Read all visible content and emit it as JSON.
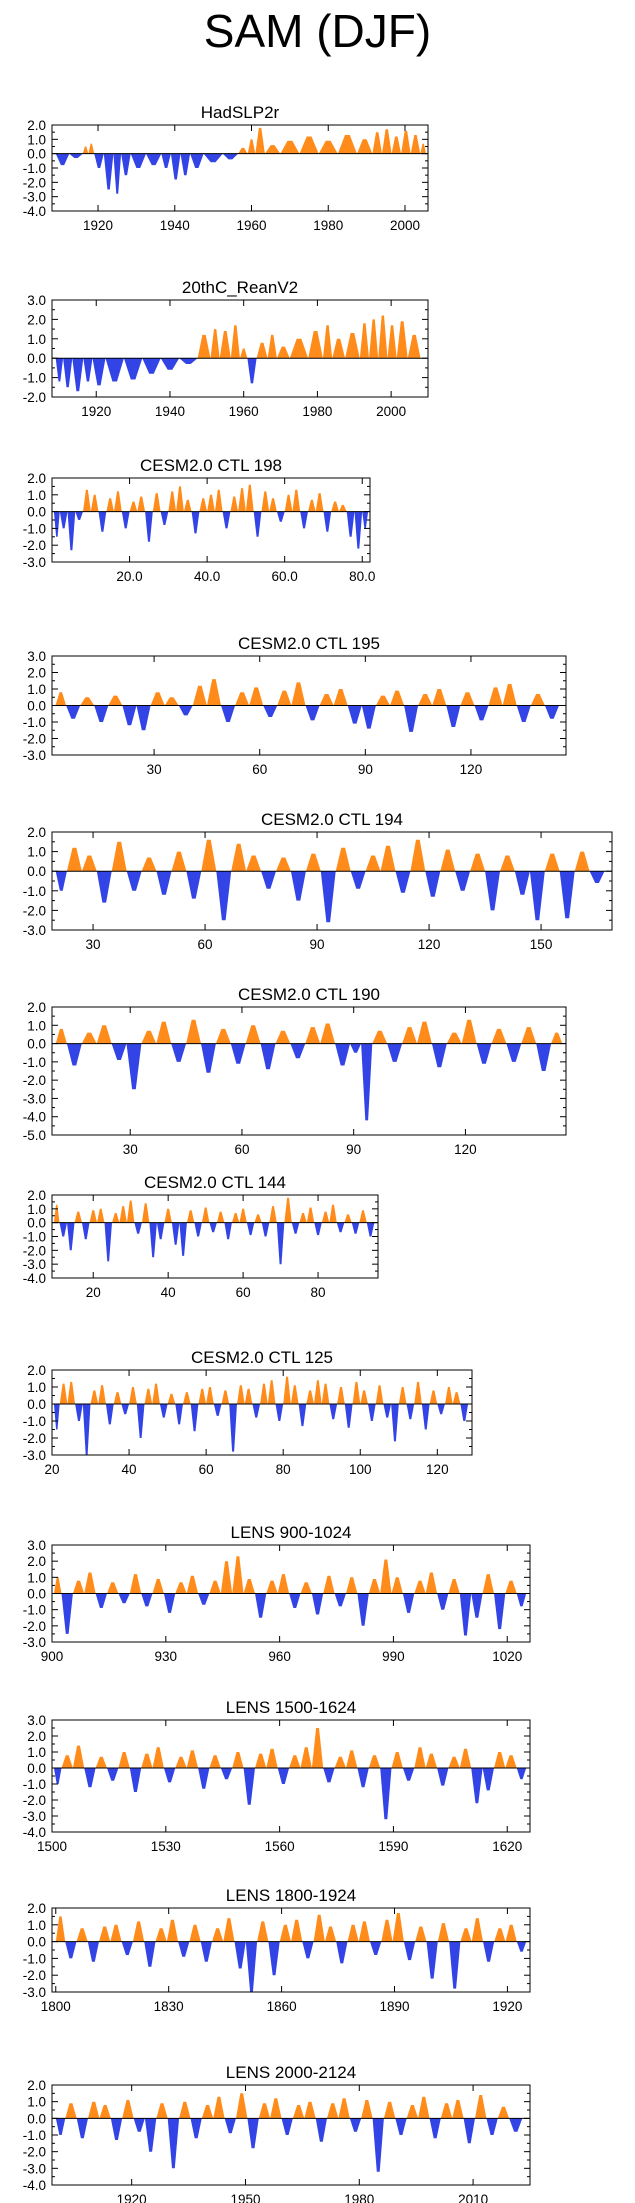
{
  "title": "SAM (DJF)",
  "colors": {
    "positive": "#ff8c1a",
    "negative": "#3344e6",
    "axis": "#000000"
  },
  "chart_data": [
    {
      "type": "area",
      "title": "HadSLP2r",
      "xlim": [
        1908,
        2006
      ],
      "ylim": [
        -4.0,
        2.0
      ],
      "yticks": [
        "2.0",
        "1.0",
        "0.0",
        "-1.0",
        "-2.0",
        "-3.0",
        "-4.0"
      ],
      "xticks": [
        "1920",
        "1940",
        "1960",
        "1980",
        "2000"
      ],
      "x": [
        1910,
        1915,
        1917,
        1918,
        1920,
        1923,
        1925,
        1927,
        1930,
        1935,
        1938,
        1940,
        1943,
        1945,
        1950,
        1955,
        1958,
        1960,
        1962,
        1965,
        1970,
        1975,
        1980,
        1985,
        1990,
        1993,
        1995,
        1998,
        2000,
        2003,
        2005
      ],
      "values": [
        -0.8,
        -0.3,
        0.5,
        0.7,
        -1.0,
        -2.5,
        -2.8,
        -1.5,
        -1.0,
        -0.8,
        -1.0,
        -1.8,
        -1.5,
        -1.0,
        -0.6,
        -0.4,
        0.4,
        1.0,
        1.8,
        0.6,
        0.9,
        1.2,
        0.9,
        1.3,
        1.0,
        1.5,
        1.7,
        1.2,
        1.6,
        1.3,
        0.7
      ]
    },
    {
      "type": "area",
      "title": "20thC_ReanV2",
      "xlim": [
        1908,
        2010
      ],
      "ylim": [
        -2.0,
        3.0
      ],
      "yticks": [
        "3.0",
        "2.0",
        "1.0",
        "0.0",
        "-1.0",
        "-2.0"
      ],
      "xticks": [
        "1920",
        "1940",
        "1960",
        "1980",
        "2000"
      ],
      "x": [
        1910,
        1912,
        1915,
        1918,
        1920,
        1925,
        1930,
        1935,
        1940,
        1945,
        1950,
        1952,
        1955,
        1958,
        1960,
        1962,
        1965,
        1968,
        1970,
        1975,
        1980,
        1983,
        1985,
        1990,
        1993,
        1995,
        1998,
        2000,
        2003,
        2006
      ],
      "values": [
        -1.2,
        -1.5,
        -1.7,
        -1.2,
        -1.4,
        -1.2,
        -1.1,
        -0.8,
        -0.6,
        -0.3,
        1.2,
        1.5,
        1.4,
        1.7,
        0.5,
        -1.3,
        0.8,
        1.2,
        0.6,
        1.0,
        1.4,
        1.7,
        1.0,
        1.3,
        1.8,
        2.0,
        2.2,
        1.7,
        1.9,
        1.2
      ]
    },
    {
      "type": "area",
      "title": "CESM2.0 CTL 198",
      "xlim": [
        0,
        82
      ],
      "ylim": [
        -3.0,
        2.0
      ],
      "yticks": [
        "2.0",
        "1.0",
        "0.0",
        "-1.0",
        "-2.0",
        "-3.0"
      ],
      "xticks": [
        "20.0",
        "40.0",
        "60.0",
        "80.0"
      ],
      "x": [
        1,
        3,
        5,
        7,
        9,
        11,
        13,
        15,
        17,
        19,
        21,
        23,
        25,
        27,
        29,
        31,
        33,
        35,
        37,
        39,
        41,
        43,
        45,
        47,
        49,
        51,
        53,
        55,
        57,
        59,
        61,
        63,
        65,
        67,
        69,
        71,
        73,
        75,
        77,
        79,
        81
      ],
      "values": [
        -1.5,
        -1.0,
        -2.3,
        -0.5,
        1.3,
        1.0,
        -1.2,
        0.8,
        1.2,
        -1.0,
        0.6,
        0.9,
        -1.8,
        1.1,
        -0.8,
        1.2,
        1.5,
        0.7,
        -1.3,
        0.8,
        1.0,
        1.3,
        -1.0,
        0.9,
        1.4,
        1.6,
        -1.5,
        1.2,
        0.8,
        -0.6,
        1.0,
        1.3,
        -1.0,
        0.7,
        1.1,
        -1.2,
        0.6,
        0.4,
        -1.5,
        -2.2,
        -1.0
      ]
    },
    {
      "type": "area",
      "title": "CESM2.0 CTL 195",
      "xlim": [
        1,
        147
      ],
      "ylim": [
        -3.0,
        3.0
      ],
      "yticks": [
        "3.0",
        "2.0",
        "1.0",
        "0.0",
        "-1.0",
        "-2.0",
        "-3.0"
      ],
      "xticks": [
        "30",
        "60",
        "90",
        "120"
      ],
      "x": [
        3,
        7,
        11,
        15,
        19,
        23,
        27,
        31,
        35,
        39,
        43,
        47,
        51,
        55,
        59,
        63,
        67,
        71,
        75,
        79,
        83,
        87,
        91,
        95,
        99,
        103,
        107,
        111,
        115,
        119,
        123,
        127,
        131,
        135,
        139,
        143
      ],
      "values": [
        0.8,
        -0.8,
        0.5,
        -1.0,
        0.6,
        -1.2,
        -1.5,
        0.8,
        0.5,
        -0.6,
        1.2,
        1.6,
        -1.0,
        0.8,
        1.1,
        -0.7,
        0.9,
        1.4,
        -0.9,
        0.7,
        1.0,
        -1.1,
        -1.4,
        0.6,
        0.9,
        -1.6,
        0.7,
        1.0,
        -1.3,
        0.8,
        -0.9,
        1.1,
        1.3,
        -1.0,
        0.7,
        -0.8
      ]
    },
    {
      "type": "area",
      "title": "CESM2.0 CTL 194",
      "xlim": [
        19,
        169
      ],
      "ylim": [
        -3.0,
        2.0
      ],
      "yticks": [
        "2.0",
        "1.0",
        "0.0",
        "-1.0",
        "-2.0",
        "-3.0"
      ],
      "xticks": [
        "30",
        "60",
        "90",
        "120",
        "150"
      ],
      "x": [
        21,
        25,
        29,
        33,
        37,
        41,
        45,
        49,
        53,
        57,
        61,
        65,
        69,
        73,
        77,
        81,
        85,
        89,
        93,
        97,
        101,
        105,
        109,
        113,
        117,
        121,
        125,
        129,
        133,
        137,
        141,
        145,
        149,
        153,
        157,
        161,
        165
      ],
      "values": [
        -1.0,
        1.2,
        0.8,
        -1.6,
        1.5,
        -1.0,
        0.7,
        -1.2,
        1.0,
        -1.4,
        1.6,
        -2.5,
        1.4,
        0.8,
        -0.9,
        0.7,
        -1.5,
        0.9,
        -2.6,
        1.2,
        -0.9,
        0.8,
        1.3,
        -1.1,
        1.6,
        -1.3,
        1.1,
        -1.0,
        0.9,
        -2.0,
        0.8,
        -1.2,
        -2.5,
        0.9,
        -2.4,
        1.0,
        -0.6
      ]
    },
    {
      "type": "area",
      "title": "CESM2.0 CTL 190",
      "xlim": [
        9,
        147
      ],
      "ylim": [
        -5.0,
        2.0
      ],
      "yticks": [
        "2.0",
        "1.0",
        "0.0",
        "-1.0",
        "-2.0",
        "-3.0",
        "-4.0",
        "-5.0"
      ],
      "xticks": [
        "30",
        "60",
        "90",
        "120"
      ],
      "x": [
        11,
        15,
        19,
        23,
        27,
        31,
        35,
        39,
        43,
        47,
        51,
        55,
        59,
        63,
        67,
        71,
        75,
        79,
        83,
        87,
        91,
        93,
        97,
        101,
        105,
        109,
        113,
        117,
        121,
        125,
        129,
        133,
        137,
        141,
        145
      ],
      "values": [
        0.8,
        -1.2,
        0.6,
        1.0,
        -0.9,
        -2.5,
        0.7,
        1.2,
        -1.0,
        1.3,
        -1.6,
        0.8,
        -1.1,
        1.0,
        -1.4,
        0.7,
        -0.8,
        0.9,
        1.1,
        -1.2,
        -0.5,
        -4.2,
        0.7,
        -1.0,
        0.9,
        1.2,
        -1.3,
        0.6,
        1.3,
        -1.1,
        0.8,
        -1.0,
        0.9,
        -1.5,
        0.6
      ]
    },
    {
      "type": "area",
      "title": "CESM2.0 CTL 144",
      "xlim": [
        9,
        96
      ],
      "ylim": [
        -4.0,
        2.0
      ],
      "yticks": [
        "2.0",
        "1.0",
        "0.0",
        "-1.0",
        "-2.0",
        "-3.0",
        "-4.0"
      ],
      "xticks": [
        "20",
        "40",
        "60",
        "80"
      ],
      "x": [
        10,
        12,
        14,
        16,
        18,
        20,
        22,
        24,
        26,
        28,
        30,
        32,
        34,
        36,
        38,
        40,
        42,
        44,
        46,
        48,
        50,
        52,
        54,
        56,
        58,
        60,
        62,
        64,
        66,
        68,
        70,
        72,
        74,
        76,
        78,
        80,
        82,
        84,
        86,
        88,
        90,
        92,
        94
      ],
      "values": [
        1.3,
        -1.0,
        -2.0,
        0.8,
        -1.2,
        0.9,
        1.0,
        -2.8,
        0.7,
        1.2,
        1.6,
        -0.8,
        1.4,
        -2.5,
        -1.2,
        1.0,
        -1.6,
        -2.4,
        0.9,
        -1.0,
        1.1,
        -0.7,
        0.8,
        -1.2,
        0.7,
        1.0,
        -0.9,
        0.6,
        -1.0,
        1.2,
        -3.0,
        1.8,
        -0.8,
        0.7,
        1.1,
        -0.9,
        0.8,
        1.3,
        -0.7,
        0.6,
        -0.8,
        0.9,
        -1.0
      ]
    },
    {
      "type": "area",
      "title": "CESM2.0 CTL 125",
      "xlim": [
        20,
        129
      ],
      "ylim": [
        -3.0,
        2.0
      ],
      "yticks": [
        "2.0",
        "1.0",
        "0.0",
        "-1.0",
        "-2.0",
        "-3.0"
      ],
      "xticks": [
        "20",
        "40",
        "60",
        "80",
        "100",
        "120"
      ],
      "x": [
        21,
        23,
        25,
        27,
        29,
        31,
        33,
        35,
        37,
        39,
        41,
        43,
        45,
        47,
        49,
        51,
        53,
        55,
        57,
        59,
        61,
        63,
        65,
        67,
        69,
        71,
        73,
        75,
        77,
        79,
        81,
        83,
        85,
        87,
        89,
        91,
        93,
        95,
        97,
        99,
        101,
        103,
        105,
        107,
        109,
        111,
        113,
        115,
        117,
        119,
        121,
        123,
        125,
        127
      ],
      "values": [
        -1.5,
        1.2,
        1.3,
        -1.0,
        -3.0,
        0.8,
        1.1,
        -1.2,
        0.7,
        -0.6,
        1.0,
        -2.0,
        0.9,
        1.2,
        -0.8,
        0.6,
        -1.2,
        0.7,
        -1.6,
        0.9,
        1.0,
        -0.7,
        0.8,
        -2.8,
        1.1,
        0.9,
        -0.8,
        1.2,
        1.4,
        -1.0,
        1.6,
        1.1,
        -1.3,
        0.8,
        1.4,
        1.2,
        -0.9,
        1.0,
        -1.4,
        1.3,
        0.8,
        -1.0,
        1.1,
        -0.8,
        -2.2,
        1.0,
        -0.9,
        1.3,
        -1.5,
        0.8,
        -0.6,
        1.0,
        0.7,
        -1.0
      ]
    },
    {
      "type": "area",
      "title": "LENS 900-1024",
      "xlim": [
        900,
        1026
      ],
      "ylim": [
        -3.0,
        3.0
      ],
      "yticks": [
        "3.0",
        "2.0",
        "1.0",
        "0.0",
        "-1.0",
        "-2.0",
        "-3.0"
      ],
      "xticks": [
        "900",
        "930",
        "960",
        "990",
        "1020"
      ],
      "x": [
        901,
        904,
        907,
        910,
        913,
        916,
        919,
        922,
        925,
        928,
        931,
        934,
        937,
        940,
        943,
        946,
        949,
        952,
        955,
        958,
        961,
        964,
        967,
        970,
        973,
        976,
        979,
        982,
        985,
        988,
        991,
        994,
        997,
        1000,
        1003,
        1006,
        1009,
        1012,
        1015,
        1018,
        1021,
        1024
      ],
      "values": [
        1.0,
        -2.5,
        0.8,
        1.3,
        -0.9,
        0.7,
        -0.6,
        1.2,
        -0.8,
        0.9,
        -1.2,
        0.7,
        1.1,
        -0.7,
        0.8,
        2.0,
        2.3,
        0.9,
        -1.5,
        0.8,
        1.2,
        -0.9,
        0.7,
        -1.3,
        1.1,
        -0.8,
        1.0,
        -2.0,
        0.9,
        2.1,
        1.0,
        -1.2,
        0.8,
        1.3,
        -1.0,
        0.9,
        -2.6,
        -1.5,
        1.2,
        -2.2,
        0.8,
        -0.8
      ]
    },
    {
      "type": "area",
      "title": "LENS 1500-1624",
      "xlim": [
        1500,
        1626
      ],
      "ylim": [
        -4.0,
        3.0
      ],
      "yticks": [
        "3.0",
        "2.0",
        "1.0",
        "0.0",
        "-1.0",
        "-2.0",
        "-3.0",
        "-4.0"
      ],
      "xticks": [
        "1500",
        "1530",
        "1560",
        "1590",
        "1620"
      ],
      "x": [
        1501,
        1504,
        1507,
        1510,
        1513,
        1516,
        1519,
        1522,
        1525,
        1528,
        1531,
        1534,
        1537,
        1540,
        1543,
        1546,
        1549,
        1552,
        1555,
        1558,
        1561,
        1564,
        1567,
        1570,
        1573,
        1576,
        1579,
        1582,
        1585,
        1588,
        1591,
        1594,
        1597,
        1600,
        1603,
        1606,
        1609,
        1612,
        1615,
        1618,
        1621,
        1624
      ],
      "values": [
        -1.0,
        0.8,
        1.4,
        -1.2,
        0.7,
        -0.8,
        1.0,
        -1.5,
        0.9,
        1.3,
        -0.9,
        0.7,
        1.1,
        -1.3,
        0.8,
        -0.7,
        1.0,
        -2.3,
        0.9,
        1.2,
        -1.0,
        0.8,
        1.3,
        2.5,
        -0.9,
        0.7,
        1.1,
        -1.2,
        0.8,
        -3.2,
        1.0,
        -0.8,
        1.3,
        0.9,
        -1.1,
        0.7,
        1.2,
        -2.2,
        -1.4,
        1.0,
        0.8,
        -0.7
      ]
    },
    {
      "type": "area",
      "title": "LENS 1800-1924",
      "xlim": [
        1799,
        1926
      ],
      "ylim": [
        -3.0,
        2.0
      ],
      "yticks": [
        "2.0",
        "1.0",
        "0.0",
        "-1.0",
        "-2.0",
        "-3.0"
      ],
      "xticks": [
        "1800",
        "1830",
        "1860",
        "1890",
        "1920"
      ],
      "x": [
        1801,
        1804,
        1807,
        1810,
        1813,
        1816,
        1819,
        1822,
        1825,
        1828,
        1831,
        1834,
        1837,
        1840,
        1843,
        1846,
        1849,
        1852,
        1855,
        1858,
        1861,
        1864,
        1867,
        1870,
        1873,
        1876,
        1879,
        1882,
        1885,
        1888,
        1891,
        1894,
        1897,
        1900,
        1903,
        1906,
        1909,
        1912,
        1915,
        1918,
        1921,
        1924
      ],
      "values": [
        1.5,
        -1.0,
        0.8,
        -1.2,
        0.9,
        1.0,
        -0.8,
        1.2,
        -1.5,
        0.8,
        1.3,
        -0.9,
        1.0,
        -1.2,
        0.8,
        1.4,
        -1.6,
        -3.0,
        1.2,
        -2.0,
        1.0,
        1.3,
        -1.0,
        1.6,
        0.9,
        -1.3,
        1.0,
        1.2,
        -0.8,
        1.3,
        1.7,
        -1.1,
        0.9,
        -2.2,
        1.1,
        -2.8,
        0.8,
        1.4,
        -1.2,
        0.8,
        1.0,
        -0.6
      ]
    },
    {
      "type": "area",
      "title": "LENS 2000-2124",
      "xlim": [
        1899,
        2025
      ],
      "ylim": [
        -4.0,
        2.0
      ],
      "yticks": [
        "2.0",
        "1.0",
        "0.0",
        "-1.0",
        "-2.0",
        "-3.0",
        "-4.0"
      ],
      "xticks": [
        "1920",
        "1950",
        "1980",
        "2010"
      ],
      "x": [
        1901,
        1904,
        1907,
        1910,
        1913,
        1916,
        1919,
        1922,
        1925,
        1928,
        1931,
        1934,
        1937,
        1940,
        1943,
        1946,
        1949,
        1952,
        1955,
        1958,
        1961,
        1964,
        1967,
        1970,
        1973,
        1976,
        1979,
        1982,
        1985,
        1988,
        1991,
        1994,
        1997,
        2000,
        2003,
        2006,
        2009,
        2012,
        2015,
        2018,
        2021
      ],
      "values": [
        -1.0,
        0.9,
        -1.2,
        1.0,
        0.8,
        -1.3,
        1.1,
        -0.8,
        -2.0,
        0.9,
        -3.0,
        1.0,
        -1.2,
        0.8,
        1.3,
        -0.9,
        1.5,
        -1.8,
        0.9,
        1.2,
        -1.0,
        0.8,
        1.0,
        -1.4,
        0.9,
        1.2,
        -0.8,
        1.1,
        -3.2,
        1.0,
        -1.0,
        0.8,
        1.3,
        -1.2,
        0.9,
        1.1,
        -1.5,
        1.4,
        -1.0,
        0.7,
        -0.8
      ]
    }
  ]
}
